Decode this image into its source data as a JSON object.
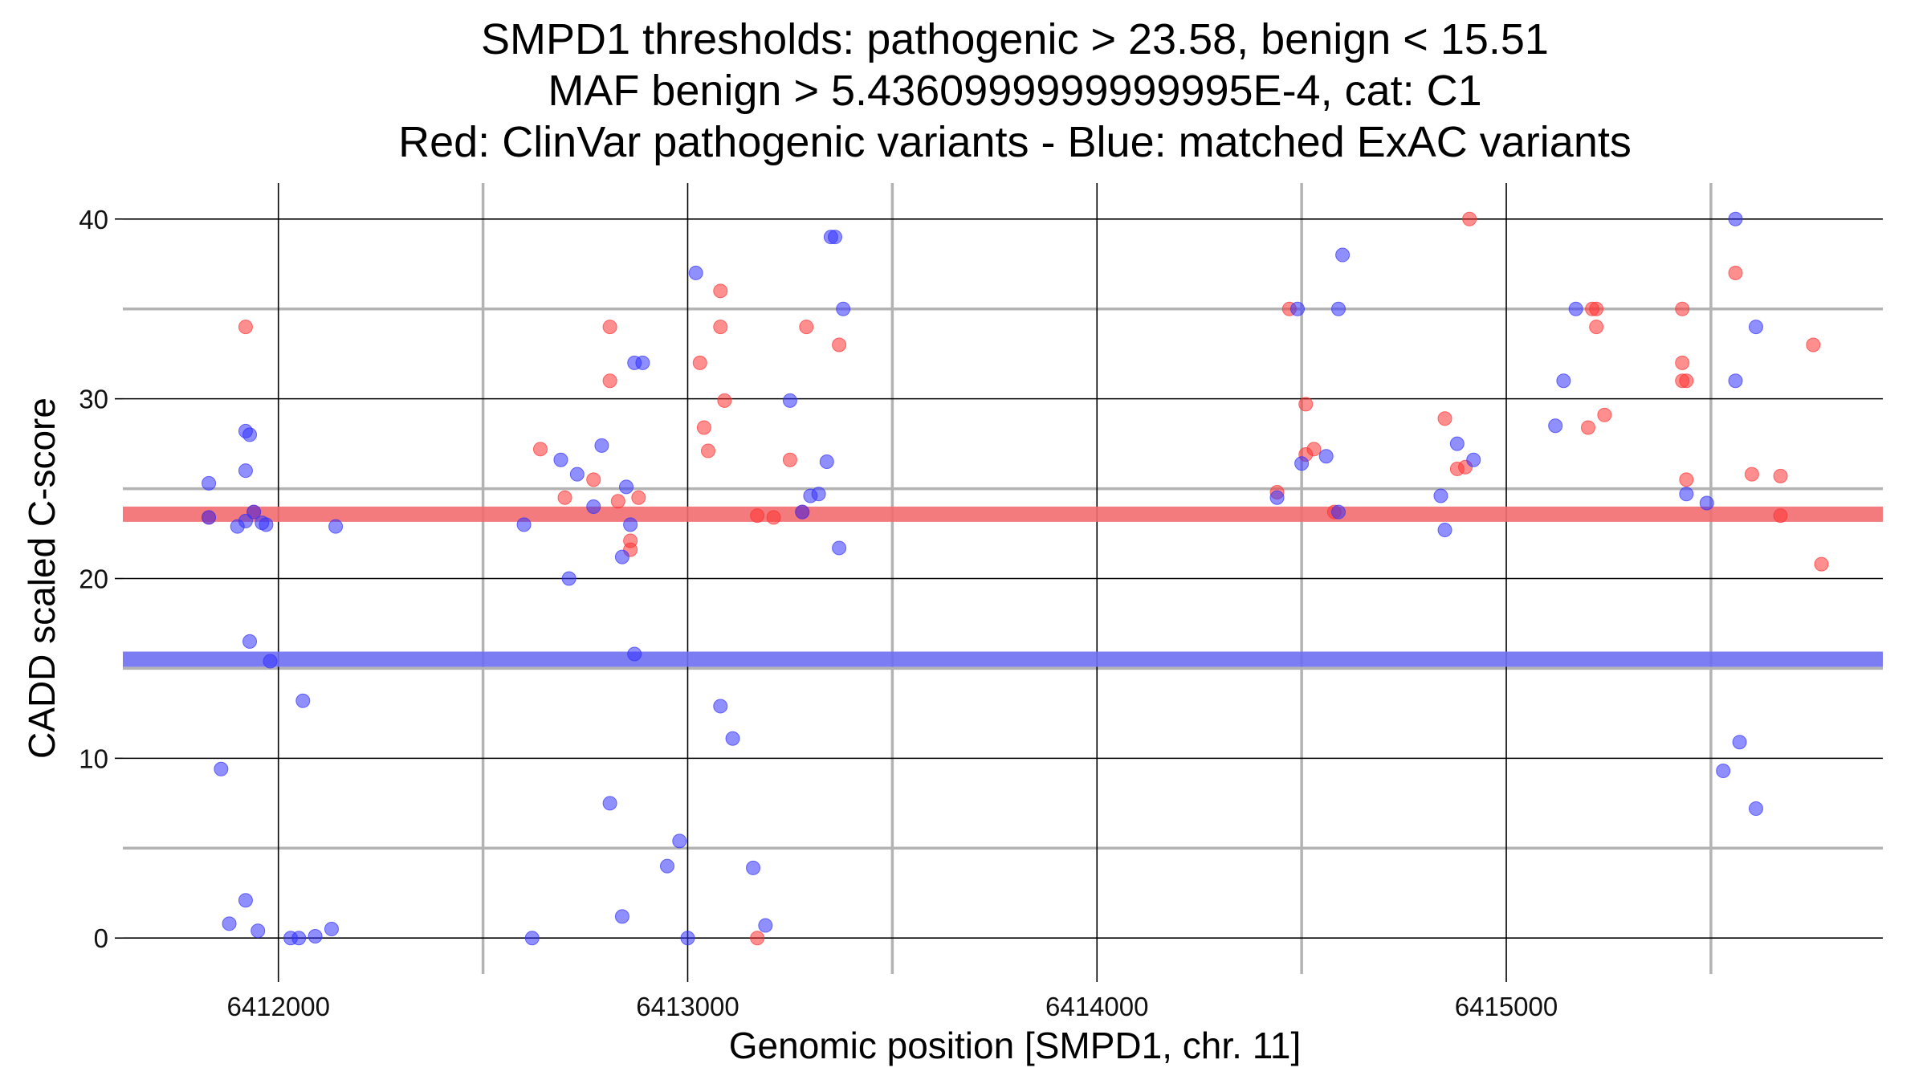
{
  "chart_data": {
    "type": "scatter",
    "title_lines": [
      "SMPD1 thresholds: pathogenic > 23.58, benign < 15.51",
      "MAF benign > 5.4360999999999995E-4, cat: C1",
      "Red: ClinVar pathogenic variants - Blue: matched ExAC variants"
    ],
    "xlabel": "Genomic position [SMPD1, chr. 11]",
    "ylabel": "CADD scaled C-score",
    "xlim": [
      6411620,
      6415920
    ],
    "ylim": [
      -2,
      42
    ],
    "x_major_ticks": [
      6412000,
      6413000,
      6414000,
      6415000
    ],
    "x_tick_labels": [
      "6412000",
      "6413000",
      "6414000",
      "6415000"
    ],
    "x_minor_ticks": [
      6412500,
      6413500,
      6414500,
      6415500
    ],
    "y_major_ticks": [
      0,
      10,
      20,
      30,
      40
    ],
    "y_tick_labels": [
      "0",
      "10",
      "20",
      "30",
      "40"
    ],
    "y_minor_ticks": [
      5,
      15,
      25,
      35
    ],
    "grid": true,
    "thresholds": [
      {
        "name": "pathogenic",
        "value": 23.58,
        "color": "#f26d70"
      },
      {
        "name": "benign",
        "value": 15.51,
        "color": "#6f6ff2"
      }
    ],
    "series": [
      {
        "color": "#ff3333",
        "points": [
          [
            6411920,
            34
          ],
          [
            6411940,
            23.7
          ],
          [
            6411830,
            23.4
          ],
          [
            6412640,
            27.2
          ],
          [
            6412700,
            24.5
          ],
          [
            6412770,
            25.5
          ],
          [
            6412810,
            34
          ],
          [
            6412810,
            31
          ],
          [
            6412830,
            24.3
          ],
          [
            6412880,
            24.5
          ],
          [
            6412860,
            22.1
          ],
          [
            6412860,
            21.6
          ],
          [
            6413030,
            32
          ],
          [
            6413040,
            28.4
          ],
          [
            6413050,
            27.1
          ],
          [
            6413080,
            34
          ],
          [
            6413080,
            36
          ],
          [
            6413090,
            29.9
          ],
          [
            6413170,
            23.5
          ],
          [
            6413210,
            23.4
          ],
          [
            6413250,
            26.6
          ],
          [
            6413280,
            23.7
          ],
          [
            6413290,
            34
          ],
          [
            6413370,
            33
          ],
          [
            6413170,
            0
          ],
          [
            6414470,
            35
          ],
          [
            6414440,
            24.8
          ],
          [
            6414510,
            29.7
          ],
          [
            6414510,
            26.9
          ],
          [
            6414530,
            27.2
          ],
          [
            6414580,
            23.7
          ],
          [
            6414850,
            28.9
          ],
          [
            6414880,
            26.1
          ],
          [
            6414900,
            26.2
          ],
          [
            6414910,
            40
          ],
          [
            6415200,
            28.4
          ],
          [
            6415210,
            35
          ],
          [
            6415220,
            35
          ],
          [
            6415220,
            34
          ],
          [
            6415240,
            29.1
          ],
          [
            6415430,
            35
          ],
          [
            6415430,
            32
          ],
          [
            6415430,
            31
          ],
          [
            6415440,
            31
          ],
          [
            6415440,
            25.5
          ],
          [
            6415560,
            37
          ],
          [
            6415600,
            25.8
          ],
          [
            6415670,
            25.7
          ],
          [
            6415670,
            23.5
          ],
          [
            6415750,
            33
          ],
          [
            6415770,
            20.8
          ]
        ]
      },
      {
        "color": "#3333ff",
        "points": [
          [
            6411830,
            25.3
          ],
          [
            6411830,
            23.4
          ],
          [
            6411860,
            9.4
          ],
          [
            6411880,
            0.8
          ],
          [
            6411900,
            22.9
          ],
          [
            6411920,
            23.2
          ],
          [
            6411920,
            2.1
          ],
          [
            6411920,
            28.2
          ],
          [
            6411930,
            28
          ],
          [
            6411920,
            26
          ],
          [
            6411930,
            16.5
          ],
          [
            6411940,
            23.7
          ],
          [
            6411950,
            0.4
          ],
          [
            6411960,
            23.1
          ],
          [
            6411970,
            23
          ],
          [
            6411980,
            15.4
          ],
          [
            6412030,
            0
          ],
          [
            6412050,
            0
          ],
          [
            6412060,
            13.2
          ],
          [
            6412090,
            0.1
          ],
          [
            6412130,
            0.5
          ],
          [
            6412140,
            22.9
          ],
          [
            6412600,
            23
          ],
          [
            6412620,
            0
          ],
          [
            6412690,
            26.6
          ],
          [
            6412710,
            20
          ],
          [
            6412730,
            25.8
          ],
          [
            6412770,
            24
          ],
          [
            6412790,
            27.4
          ],
          [
            6412810,
            7.5
          ],
          [
            6412840,
            1.2
          ],
          [
            6412840,
            21.2
          ],
          [
            6412850,
            25.1
          ],
          [
            6412860,
            23
          ],
          [
            6412870,
            15.8
          ],
          [
            6412870,
            32
          ],
          [
            6412890,
            32
          ],
          [
            6412950,
            4
          ],
          [
            6412980,
            5.4
          ],
          [
            6413000,
            0
          ],
          [
            6413020,
            37
          ],
          [
            6413080,
            12.9
          ],
          [
            6413110,
            11.1
          ],
          [
            6413160,
            3.9
          ],
          [
            6413190,
            0.7
          ],
          [
            6413250,
            29.9
          ],
          [
            6413280,
            23.7
          ],
          [
            6413300,
            24.6
          ],
          [
            6413320,
            24.7
          ],
          [
            6413340,
            26.5
          ],
          [
            6413350,
            39
          ],
          [
            6413360,
            39
          ],
          [
            6413370,
            21.7
          ],
          [
            6413380,
            35
          ],
          [
            6414440,
            24.5
          ],
          [
            6414490,
            35
          ],
          [
            6414500,
            26.4
          ],
          [
            6414560,
            26.8
          ],
          [
            6414590,
            35
          ],
          [
            6414590,
            23.7
          ],
          [
            6414600,
            38
          ],
          [
            6414840,
            24.6
          ],
          [
            6414850,
            22.7
          ],
          [
            6414880,
            27.5
          ],
          [
            6414920,
            26.6
          ],
          [
            6415120,
            28.5
          ],
          [
            6415140,
            31
          ],
          [
            6415170,
            35
          ],
          [
            6415440,
            24.7
          ],
          [
            6415490,
            24.2
          ],
          [
            6415530,
            9.3
          ],
          [
            6415560,
            40
          ],
          [
            6415560,
            31
          ],
          [
            6415570,
            10.9
          ],
          [
            6415610,
            34
          ],
          [
            6415610,
            7.2
          ]
        ]
      }
    ]
  }
}
